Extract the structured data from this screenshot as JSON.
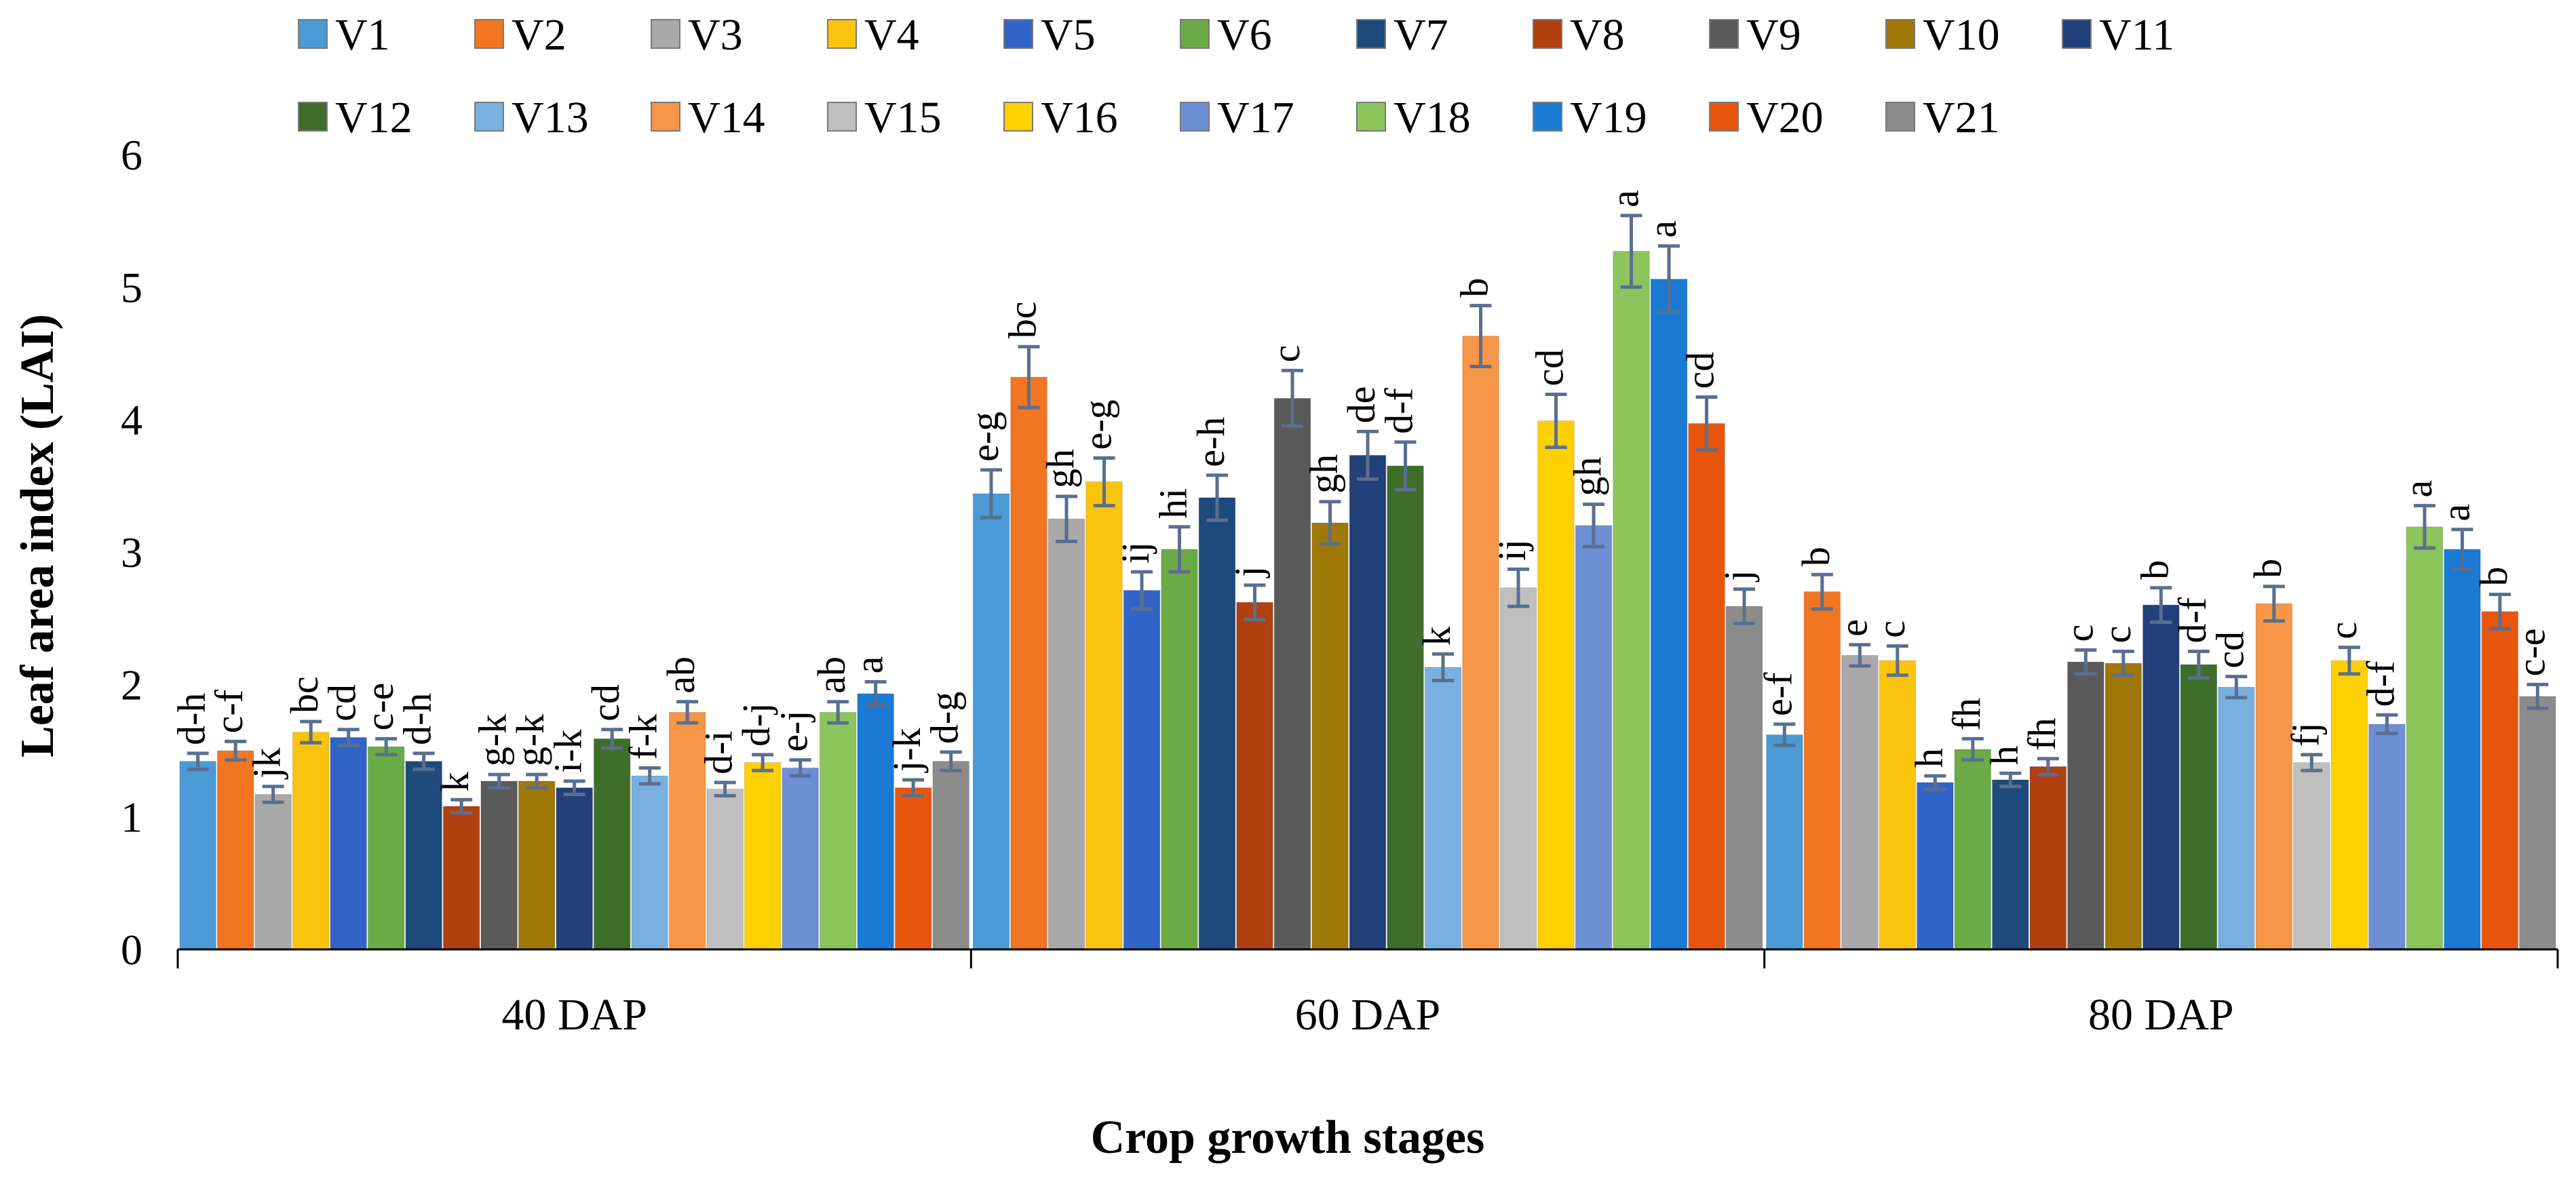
{
  "chart_data": {
    "type": "bar",
    "title": "",
    "xlabel": "Crop growth stages",
    "ylabel": "Leaf area index (LAI)",
    "ylim": [
      0,
      6
    ],
    "yticks": [
      "0",
      "1",
      "2",
      "3",
      "4",
      "5",
      "6"
    ],
    "categories": [
      "40 DAP",
      "60 DAP",
      "80 DAP"
    ],
    "legend_position": "top",
    "series": [
      {
        "name": "V1",
        "color": "#4a9ad6",
        "values": [
          1.42,
          3.44,
          1.62
        ],
        "errors": [
          0.06,
          0.18,
          0.08
        ],
        "labels": [
          "d-h",
          "e-g",
          "e-f"
        ]
      },
      {
        "name": "V2",
        "color": "#f27521",
        "values": [
          1.5,
          4.32,
          2.7
        ],
        "errors": [
          0.07,
          0.23,
          0.13
        ],
        "labels": [
          "c-f",
          "bc",
          "b"
        ]
      },
      {
        "name": "V3",
        "color": "#a9a9a9",
        "values": [
          1.17,
          3.25,
          2.22
        ],
        "errors": [
          0.06,
          0.17,
          0.08
        ],
        "labels": [
          "jk",
          "gh",
          "e"
        ]
      },
      {
        "name": "V4",
        "color": "#fbc40c",
        "values": [
          1.64,
          3.53,
          2.18
        ],
        "errors": [
          0.08,
          0.18,
          0.11
        ],
        "labels": [
          "bc",
          "e-g",
          "c"
        ]
      },
      {
        "name": "V5",
        "color": "#3264c8",
        "values": [
          1.6,
          2.71,
          1.26
        ],
        "errors": [
          0.06,
          0.14,
          0.05
        ],
        "labels": [
          "cd",
          "ij",
          "h"
        ]
      },
      {
        "name": "V6",
        "color": "#6aab46",
        "values": [
          1.53,
          3.02,
          1.51
        ],
        "errors": [
          0.06,
          0.17,
          0.08
        ],
        "labels": [
          "c-e",
          "hi",
          "fh"
        ]
      },
      {
        "name": "V7",
        "color": "#1e4a7c",
        "values": [
          1.42,
          3.41,
          1.28
        ],
        "errors": [
          0.06,
          0.17,
          0.05
        ],
        "labels": [
          "d-h",
          "e-h",
          "h"
        ]
      },
      {
        "name": "V8",
        "color": "#b0400f",
        "values": [
          1.08,
          2.62,
          1.38
        ],
        "errors": [
          0.05,
          0.13,
          0.06
        ],
        "labels": [
          "k",
          "j",
          "fh"
        ]
      },
      {
        "name": "V9",
        "color": "#5a5a5a",
        "values": [
          1.27,
          4.16,
          2.17
        ],
        "errors": [
          0.05,
          0.21,
          0.09
        ],
        "labels": [
          "g-k",
          "c",
          "c"
        ]
      },
      {
        "name": "V10",
        "color": "#a07808",
        "values": [
          1.27,
          3.22,
          2.16
        ],
        "errors": [
          0.05,
          0.16,
          0.09
        ],
        "labels": [
          "g-k",
          "gh",
          "c"
        ]
      },
      {
        "name": "V11",
        "color": "#22407a",
        "values": [
          1.22,
          3.73,
          2.6
        ],
        "errors": [
          0.05,
          0.18,
          0.13
        ],
        "labels": [
          "i-k",
          "de",
          "b"
        ]
      },
      {
        "name": "V12",
        "color": "#3f6e2a",
        "values": [
          1.59,
          3.65,
          2.15
        ],
        "errors": [
          0.07,
          0.18,
          0.1
        ],
        "labels": [
          "cd",
          "d-f",
          "d-f"
        ]
      },
      {
        "name": "V13",
        "color": "#7ab0e0",
        "values": [
          1.31,
          2.13,
          1.98
        ],
        "errors": [
          0.06,
          0.1,
          0.08
        ],
        "labels": [
          "f-k",
          "k",
          "cd"
        ]
      },
      {
        "name": "V14",
        "color": "#f79646",
        "values": [
          1.79,
          4.63,
          2.61
        ],
        "errors": [
          0.08,
          0.23,
          0.13
        ],
        "labels": [
          "ab",
          "b",
          "b"
        ]
      },
      {
        "name": "V15",
        "color": "#bfbfbf",
        "values": [
          1.21,
          2.73,
          1.41
        ],
        "errors": [
          0.05,
          0.14,
          0.06
        ],
        "labels": [
          "d-i",
          "ij",
          "fj"
        ]
      },
      {
        "name": "V16",
        "color": "#ffd000",
        "values": [
          1.41,
          3.99,
          2.18
        ],
        "errors": [
          0.06,
          0.2,
          0.1
        ],
        "labels": [
          "d-j",
          "cd",
          "c"
        ]
      },
      {
        "name": "V17",
        "color": "#6d8fd6",
        "values": [
          1.37,
          3.2,
          1.7
        ],
        "errors": [
          0.06,
          0.16,
          0.07
        ],
        "labels": [
          "e-j",
          "gh",
          "d-f"
        ]
      },
      {
        "name": "V18",
        "color": "#8cc55c",
        "values": [
          1.79,
          5.27,
          3.19
        ],
        "errors": [
          0.08,
          0.27,
          0.16
        ],
        "labels": [
          "ab",
          "a",
          "a"
        ]
      },
      {
        "name": "V19",
        "color": "#1a7ad4",
        "values": [
          1.93,
          5.06,
          3.02
        ],
        "errors": [
          0.09,
          0.25,
          0.15
        ],
        "labels": [
          "a",
          "a",
          "a"
        ]
      },
      {
        "name": "V20",
        "color": "#e8560e",
        "values": [
          1.22,
          3.97,
          2.55
        ],
        "errors": [
          0.06,
          0.2,
          0.13
        ],
        "labels": [
          "j-k",
          "cd",
          "b"
        ]
      },
      {
        "name": "V21",
        "color": "#8c8c8c",
        "values": [
          1.42,
          2.59,
          1.91
        ],
        "errors": [
          0.07,
          0.13,
          0.09
        ],
        "labels": [
          "d-g",
          "j",
          "c-e"
        ]
      }
    ]
  }
}
